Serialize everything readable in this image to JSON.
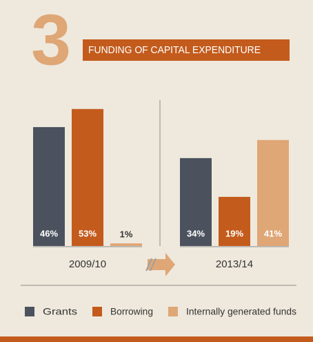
{
  "chart_data": {
    "type": "bar",
    "number": "3",
    "title": "FUNDING OF CAPITAL EXPENDITURE",
    "categories": [
      "2009/10",
      "2013/14"
    ],
    "series": [
      {
        "name": "Grants",
        "color": "#4b525e",
        "values": [
          46,
          34
        ],
        "value_labels": [
          "46%",
          "34%"
        ]
      },
      {
        "name": "Borrowing",
        "color": "#c35b1c",
        "values": [
          53,
          19
        ],
        "value_labels": [
          "53%",
          "19%"
        ]
      },
      {
        "name": "Internally generated funds",
        "color": "#dfa676",
        "values": [
          1,
          41
        ],
        "value_labels": [
          "1%",
          "41%"
        ]
      }
    ],
    "legend": "bottom"
  }
}
